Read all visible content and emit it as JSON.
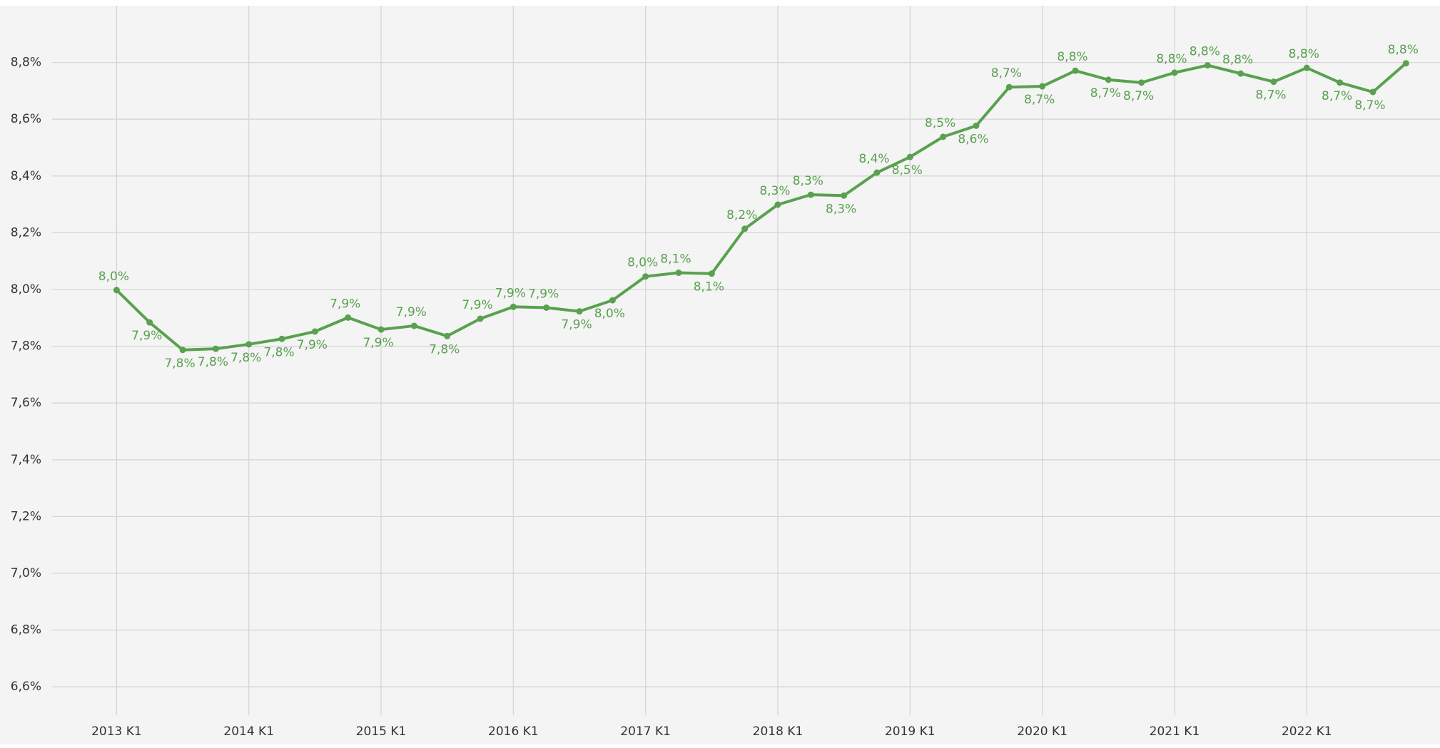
{
  "chart_data": {
    "type": "line",
    "categories": [
      "2013 K1",
      null,
      null,
      null,
      "2014 K1",
      null,
      null,
      null,
      "2015 K1",
      null,
      null,
      null,
      "2016 K1",
      null,
      null,
      null,
      "2017 K1",
      null,
      null,
      null,
      "2018 K1",
      null,
      null,
      null,
      "2019 K1",
      null,
      null,
      null,
      "2020 K1",
      null,
      null,
      null,
      "2021 K1",
      null,
      null,
      null,
      "2022 K1",
      null,
      null,
      null
    ],
    "series": [
      {
        "name": null,
        "color": "#59a14f",
        "values": [
          7.998,
          7.884,
          7.787,
          7.791,
          7.807,
          7.826,
          7.852,
          7.901,
          7.859,
          7.872,
          7.836,
          7.897,
          7.939,
          7.936,
          7.923,
          7.962,
          8.046,
          8.059,
          8.056,
          8.214,
          8.299,
          8.334,
          8.331,
          8.412,
          8.467,
          8.538,
          8.577,
          8.713,
          8.716,
          8.771,
          8.739,
          8.729,
          8.764,
          8.79,
          8.761,
          8.732,
          8.781,
          8.729,
          8.696,
          8.797
        ],
        "value_labels": [
          "8,0%",
          "7,9%",
          "7,8%",
          "7,8%",
          "7,8%",
          "7,8%",
          "7,9%",
          "7,9%",
          "7,9%",
          "7,9%",
          "7,8%",
          "7,9%",
          "7,9%",
          "7,9%",
          "7,9%",
          "8,0%",
          "8,0%",
          "8,1%",
          "8,1%",
          "8,2%",
          "8,3%",
          "8,3%",
          "8,3%",
          "8,4%",
          "8,5%",
          "8,5%",
          "8,6%",
          "8,7%",
          "8,7%",
          "8,8%",
          "8,7%",
          "8,7%",
          "8,8%",
          "8,8%",
          "8,8%",
          "8,7%",
          "8,8%",
          "8,7%",
          "8,7%",
          "8,8%"
        ]
      }
    ],
    "ylim": [
      6.5,
      9.0
    ],
    "yticks": [
      {
        "value": 6.6,
        "label": "6,6%"
      },
      {
        "value": 6.8,
        "label": "6,8%"
      },
      {
        "value": 7.0,
        "label": "7,0%"
      },
      {
        "value": 7.2,
        "label": "7,2%"
      },
      {
        "value": 7.4,
        "label": "7,4%"
      },
      {
        "value": 7.6,
        "label": "7,6%"
      },
      {
        "value": 7.8,
        "label": "7,8%"
      },
      {
        "value": 8.0,
        "label": "8,0%"
      },
      {
        "value": 8.2,
        "label": "8,2%"
      },
      {
        "value": 8.4,
        "label": "8,4%"
      },
      {
        "value": 8.6,
        "label": "8,6%"
      },
      {
        "value": 8.8,
        "label": "8,8%"
      }
    ],
    "grid": true
  }
}
